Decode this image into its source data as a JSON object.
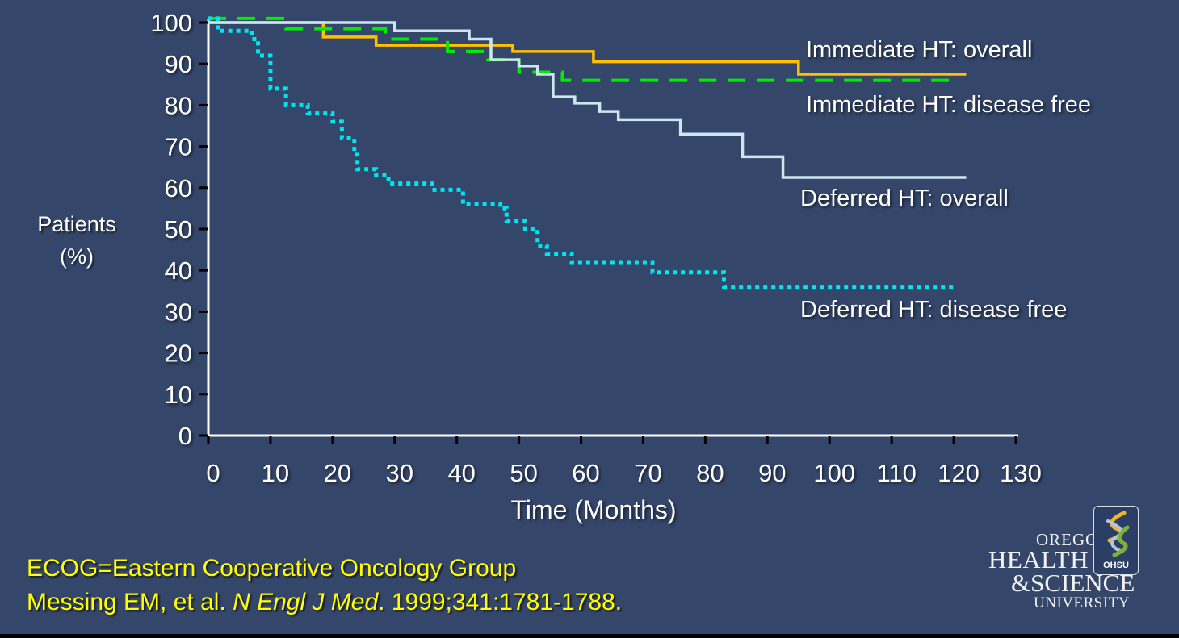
{
  "chart_data": {
    "type": "line",
    "subtype": "kaplan-meier-step",
    "title": "",
    "xlabel": "Time (Months)",
    "ylabel": "Patients (%)",
    "xlim": [
      0,
      130
    ],
    "ylim": [
      0,
      100
    ],
    "xticks": [
      0,
      10,
      20,
      30,
      40,
      50,
      60,
      70,
      80,
      90,
      100,
      110,
      120,
      130
    ],
    "yticks": [
      0,
      10,
      20,
      30,
      40,
      50,
      60,
      70,
      80,
      90,
      100
    ],
    "grid": false,
    "legend": "inline-right",
    "series": [
      {
        "name": "Immediate HT: overall",
        "color": "#ffc000",
        "style": "solid",
        "x": [
          0,
          18.5,
          27,
          49,
          62,
          95,
          122
        ],
        "y": [
          100,
          96.5,
          94.5,
          93,
          90.5,
          87.5,
          87.5
        ]
      },
      {
        "name": "Immediate HT: disease free",
        "color": "#00ee00",
        "style": "dashed",
        "x": [
          0,
          12.5,
          28.5,
          38.5,
          45,
          50,
          57,
          120
        ],
        "y": [
          101,
          98.5,
          96,
          93,
          91,
          88,
          86,
          86
        ]
      },
      {
        "name": "Deferred HT: overall",
        "color": "#cce6ee",
        "style": "solid",
        "x": [
          0,
          30,
          42,
          45.5,
          50,
          53,
          55.5,
          59,
          63,
          66,
          76,
          86,
          92.5,
          122
        ],
        "y": [
          100,
          98,
          96,
          91,
          89.5,
          87.5,
          82,
          80.5,
          78.5,
          76.5,
          73,
          67.5,
          62.5,
          62.5
        ]
      },
      {
        "name": "Deferred HT: disease free",
        "color": "#00e5ee",
        "style": "dotted",
        "x": [
          0,
          1.5,
          7,
          8,
          10,
          12.5,
          16,
          20,
          21.5,
          23.5,
          24,
          27,
          29,
          36,
          41,
          47,
          48,
          51,
          53,
          54.5,
          58.5,
          71.5,
          83,
          120
        ],
        "y": [
          101,
          98,
          96,
          92,
          84,
          80,
          78,
          76,
          72,
          68,
          64.5,
          63,
          61,
          59.5,
          56,
          55,
          52,
          50,
          46,
          44,
          42,
          39.5,
          36,
          36
        ]
      }
    ],
    "annotations": [
      "Immediate HT: overall",
      "Immediate HT: disease free",
      "Deferred HT: overall",
      "Deferred HT: disease free"
    ]
  },
  "axis": {
    "ylabel_line1": "Patients",
    "ylabel_line2": "(%)",
    "xlabel": "Time (Months)"
  },
  "footnotes": {
    "line1": "ECOG=Eastern Cooperative Oncology Group",
    "line2_prefix": "Messing EM, et al. ",
    "line2_journal": "N Engl J Med",
    "line2_suffix": ". 1999;341:1781-1788."
  },
  "logo": {
    "line1": "OREGON",
    "line2": "HEALTH",
    "line3": "&SCIENCE",
    "line4": "UNIVERSITY",
    "badge": "OHSU",
    "icon": "helix-icon"
  },
  "colors": {
    "background": "#34466a",
    "axis": "#ffffff",
    "tick": "#000000",
    "footnote": "#ffff00"
  }
}
